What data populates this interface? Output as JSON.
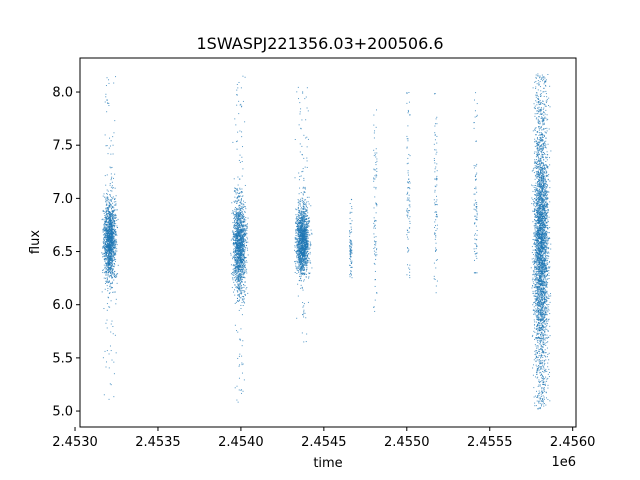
{
  "chart_data": {
    "type": "scatter",
    "title": "1SWASPJ221356.03+200506.6",
    "xlabel": "time",
    "ylabel": "flux",
    "x_offset_label": "1e6",
    "xlim": [
      2453030,
      2456020
    ],
    "ylim": [
      4.85,
      8.32
    ],
    "x_ticks": [
      2453000,
      2453500,
      2454000,
      2454500,
      2455000,
      2455500,
      2456000
    ],
    "x_tick_labels": [
      "2.4530",
      "2.4535",
      "2.4540",
      "2.4545",
      "2.4550",
      "2.4555",
      "2.4560"
    ],
    "y_ticks": [
      5.0,
      5.5,
      6.0,
      6.5,
      7.0,
      7.5,
      8.0
    ],
    "y_tick_labels": [
      "5.0",
      "5.5",
      "6.0",
      "6.5",
      "7.0",
      "7.5",
      "8.0"
    ],
    "grid": false,
    "marker_color": "#1f77b4",
    "series": [
      {
        "values_description_free": true,
        "segments": [
          {
            "x_range": [
              2453155,
              2453265
            ],
            "y_center": 6.6,
            "y_core": [
              6.3,
              6.9
            ],
            "y_extent": [
              5.1,
              8.15
            ]
          },
          {
            "x_range": [
              2453935,
              2454050
            ],
            "y_center": 6.55,
            "y_core": [
              6.2,
              6.9
            ],
            "y_extent": [
              5.05,
              8.15
            ]
          },
          {
            "x_range": [
              2454315,
              2454430
            ],
            "y_center": 6.6,
            "y_core": [
              6.35,
              6.85
            ],
            "y_extent": [
              5.65,
              8.05
            ]
          },
          {
            "x_range": [
              2454655,
              2454670
            ],
            "y_center": 6.55,
            "y_core": [
              6.4,
              6.8
            ],
            "y_extent": [
              6.25,
              7.0
            ]
          },
          {
            "x_range": [
              2454800,
              2454820
            ],
            "y_center": 6.9,
            "y_core": [
              6.3,
              7.5
            ],
            "y_extent": [
              5.82,
              7.85
            ]
          },
          {
            "x_range": [
              2455000,
              2455020
            ],
            "y_center": 6.9,
            "y_core": [
              6.5,
              7.4
            ],
            "y_extent": [
              6.25,
              8.15
            ]
          },
          {
            "x_range": [
              2455165,
              2455185
            ],
            "y_center": 6.9,
            "y_core": [
              6.4,
              7.5
            ],
            "y_extent": [
              6.08,
              8.0
            ]
          },
          {
            "x_range": [
              2455405,
              2455425
            ],
            "y_center": 6.8,
            "y_core": [
              6.4,
              7.5
            ],
            "y_extent": [
              6.3,
              8.05
            ]
          },
          {
            "x_range": [
              2455745,
              2455875
            ],
            "y_center": 6.6,
            "y_core": [
              5.8,
              7.4
            ],
            "y_extent": [
              5.02,
              8.17
            ]
          }
        ]
      }
    ]
  }
}
